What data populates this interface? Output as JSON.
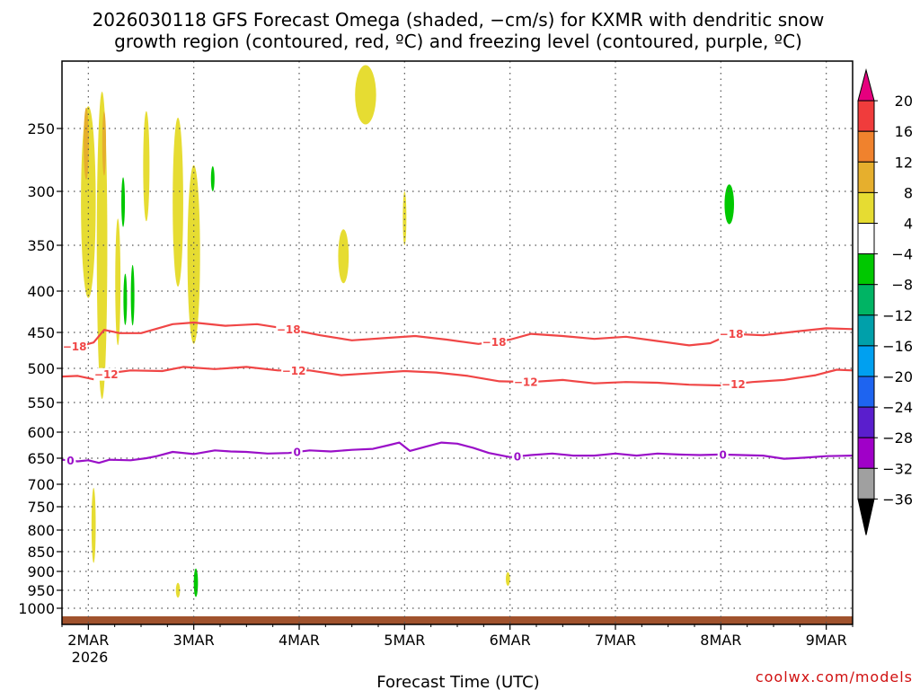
{
  "chart_data": {
    "type": "heatmap",
    "title_line1": "2026030118 GFS Forecast Omega (shaded, −cm/s) for KXMR with dendritic snow",
    "title_line2": "growth region (contoured, red, ºC) and freezing level (contoured, purple, ºC)",
    "xlabel": "Forecast Time (UTC)",
    "credit": "coolwx.com/models",
    "x_time_range_days": [
      0.75,
      8.25
    ],
    "y_pressure_range_hpa": [
      200,
      1020
    ],
    "x_ticks": [
      {
        "label": "2MAR",
        "day": 1
      },
      {
        "label": "3MAR",
        "day": 2
      },
      {
        "label": "4MAR",
        "day": 3
      },
      {
        "label": "5MAR",
        "day": 4
      },
      {
        "label": "6MAR",
        "day": 5
      },
      {
        "label": "7MAR",
        "day": 6
      },
      {
        "label": "8MAR",
        "day": 7
      },
      {
        "label": "9MAR",
        "day": 8
      }
    ],
    "x_year_label": "2026",
    "y_ticks": [
      {
        "label": "250",
        "p": 250
      },
      {
        "label": "300",
        "p": 300
      },
      {
        "label": "350",
        "p": 350
      },
      {
        "label": "400",
        "p": 400
      },
      {
        "label": "450",
        "p": 450
      },
      {
        "label": "500",
        "p": 500
      },
      {
        "label": "550",
        "p": 550
      },
      {
        "label": "600",
        "p": 600
      },
      {
        "label": "650",
        "p": 650
      },
      {
        "label": "700",
        "p": 700
      },
      {
        "label": "750",
        "p": 750
      },
      {
        "label": "800",
        "p": 800
      },
      {
        "label": "850",
        "p": 850
      },
      {
        "label": "900",
        "p": 900
      },
      {
        "label": "950",
        "p": 950
      },
      {
        "label": "1000",
        "p": 1000
      }
    ],
    "colorbar": {
      "bins": [
        {
          "color": "#e6007e",
          "shape": "tri-up"
        },
        {
          "color": "#f03c3c"
        },
        {
          "color": "#f0822d"
        },
        {
          "color": "#e6af2d"
        },
        {
          "color": "#e6dc32"
        },
        {
          "color": "#ffffff"
        },
        {
          "color": "#00c800"
        },
        {
          "color": "#00b464"
        },
        {
          "color": "#00a0aa"
        },
        {
          "color": "#00a0f0"
        },
        {
          "color": "#1e64f0"
        },
        {
          "color": "#5a1ecd"
        },
        {
          "color": "#a000c8"
        },
        {
          "color": "#a0a0a0"
        },
        {
          "color": "#000000",
          "shape": "tri-down"
        }
      ],
      "labels": [
        "20",
        "16",
        "12",
        "8",
        "4",
        "−4",
        "−8",
        "−12",
        "−16",
        "−20",
        "−24",
        "−28",
        "−32",
        "−36"
      ]
    },
    "contours": [
      {
        "name": "dgz-minus18",
        "color": "#f04646",
        "points": [
          [
            0.75,
            467
          ],
          [
            0.9,
            470
          ],
          [
            1.05,
            464
          ],
          [
            1.15,
            447
          ],
          [
            1.3,
            451
          ],
          [
            1.5,
            451
          ],
          [
            1.8,
            440
          ],
          [
            2.0,
            438
          ],
          [
            2.3,
            442
          ],
          [
            2.6,
            440
          ],
          [
            2.9,
            446
          ],
          [
            3.2,
            454
          ],
          [
            3.5,
            461
          ],
          [
            3.8,
            458
          ],
          [
            4.1,
            455
          ],
          [
            4.4,
            460
          ],
          [
            4.7,
            466
          ],
          [
            5.0,
            460
          ],
          [
            5.2,
            452
          ],
          [
            5.5,
            455
          ],
          [
            5.8,
            459
          ],
          [
            6.1,
            456
          ],
          [
            6.4,
            462
          ],
          [
            6.7,
            468
          ],
          [
            6.9,
            465
          ],
          [
            7.1,
            452
          ],
          [
            7.4,
            454
          ],
          [
            7.7,
            449
          ],
          [
            8.0,
            445
          ],
          [
            8.25,
            446
          ]
        ],
        "labels": [
          {
            "text": "−18",
            "day": 0.87
          },
          {
            "text": "−18",
            "day": 2.9
          },
          {
            "text": "−18",
            "day": 4.85
          },
          {
            "text": "−18",
            "day": 7.1
          }
        ]
      },
      {
        "name": "dgz-minus12",
        "color": "#f04646",
        "points": [
          [
            0.75,
            512
          ],
          [
            0.9,
            511
          ],
          [
            1.05,
            516
          ],
          [
            1.2,
            507
          ],
          [
            1.4,
            503
          ],
          [
            1.7,
            504
          ],
          [
            1.9,
            498
          ],
          [
            2.2,
            501
          ],
          [
            2.5,
            498
          ],
          [
            2.8,
            503
          ],
          [
            3.1,
            503
          ],
          [
            3.4,
            510
          ],
          [
            3.7,
            507
          ],
          [
            4.0,
            504
          ],
          [
            4.3,
            506
          ],
          [
            4.6,
            511
          ],
          [
            4.9,
            519
          ],
          [
            5.2,
            520
          ],
          [
            5.5,
            517
          ],
          [
            5.8,
            522
          ],
          [
            6.1,
            520
          ],
          [
            6.4,
            521
          ],
          [
            6.7,
            524
          ],
          [
            7.0,
            525
          ],
          [
            7.3,
            520
          ],
          [
            7.6,
            517
          ],
          [
            7.9,
            510
          ],
          [
            8.1,
            502
          ],
          [
            8.25,
            503
          ]
        ],
        "labels": [
          {
            "text": "−12",
            "day": 1.17
          },
          {
            "text": "−12",
            "day": 2.95
          },
          {
            "text": "−12",
            "day": 5.15
          },
          {
            "text": "−12",
            "day": 7.12
          }
        ]
      },
      {
        "name": "freezing-level-0",
        "color": "#9a10c8",
        "points": [
          [
            0.75,
            653
          ],
          [
            0.9,
            656
          ],
          [
            1.0,
            654
          ],
          [
            1.1,
            659
          ],
          [
            1.2,
            653
          ],
          [
            1.4,
            654
          ],
          [
            1.55,
            650
          ],
          [
            1.65,
            646
          ],
          [
            1.8,
            638
          ],
          [
            2.0,
            642
          ],
          [
            2.2,
            635
          ],
          [
            2.35,
            637
          ],
          [
            2.5,
            638
          ],
          [
            2.7,
            641
          ],
          [
            2.9,
            640
          ],
          [
            3.1,
            635
          ],
          [
            3.3,
            637
          ],
          [
            3.5,
            634
          ],
          [
            3.7,
            632
          ],
          [
            3.85,
            625
          ],
          [
            3.95,
            620
          ],
          [
            4.05,
            636
          ],
          [
            4.2,
            628
          ],
          [
            4.35,
            620
          ],
          [
            4.5,
            622
          ],
          [
            4.65,
            630
          ],
          [
            4.8,
            640
          ],
          [
            5.0,
            648
          ],
          [
            5.2,
            644
          ],
          [
            5.4,
            641
          ],
          [
            5.6,
            645
          ],
          [
            5.8,
            645
          ],
          [
            6.0,
            641
          ],
          [
            6.2,
            645
          ],
          [
            6.4,
            641
          ],
          [
            6.6,
            643
          ],
          [
            6.8,
            644
          ],
          [
            7.0,
            643
          ],
          [
            7.2,
            644
          ],
          [
            7.4,
            645
          ],
          [
            7.6,
            651
          ],
          [
            7.8,
            649
          ],
          [
            8.0,
            646
          ],
          [
            8.25,
            645
          ]
        ],
        "labels": [
          {
            "text": "0",
            "day": 0.83
          },
          {
            "text": "0",
            "day": 2.98
          },
          {
            "text": "0",
            "day": 5.07
          },
          {
            "text": "0",
            "day": 7.02
          }
        ]
      }
    ],
    "omega_regions": [
      {
        "name": "yellow-blob-a",
        "color": "#e6dc32",
        "cx": 1.0,
        "cp": 310,
        "rx": 0.07,
        "rp": 85
      },
      {
        "name": "yellow-blob-b",
        "color": "#e6dc32",
        "cx": 1.13,
        "cp": 350,
        "rx": 0.05,
        "rp": 150
      },
      {
        "name": "orange-core-a",
        "color": "#e6af2d",
        "cx": 0.98,
        "cp": 262,
        "rx": 0.025,
        "rp": 28
      },
      {
        "name": "orange-core-b",
        "color": "#e6af2d",
        "cx": 1.15,
        "cp": 262,
        "rx": 0.018,
        "rp": 25
      },
      {
        "name": "yellow-streak-c",
        "color": "#e6dc32",
        "cx": 1.28,
        "cp": 390,
        "rx": 0.025,
        "rp": 70
      },
      {
        "name": "yellow-streak-d",
        "color": "#e6dc32",
        "cx": 1.55,
        "cp": 280,
        "rx": 0.03,
        "rp": 45
      },
      {
        "name": "yellow-streak-e",
        "color": "#e6dc32",
        "cx": 1.85,
        "cp": 310,
        "rx": 0.05,
        "rp": 75
      },
      {
        "name": "yellow-streak-f",
        "color": "#e6dc32",
        "cx": 2.0,
        "cp": 360,
        "rx": 0.06,
        "rp": 90
      },
      {
        "name": "yellow-blob-g",
        "color": "#e6dc32",
        "cx": 3.63,
        "cp": 225,
        "rx": 0.1,
        "rp": 22
      },
      {
        "name": "yellow-blob-h",
        "color": "#e6dc32",
        "cx": 3.42,
        "cp": 362,
        "rx": 0.05,
        "rp": 28
      },
      {
        "name": "yellow-streak-i",
        "color": "#e6dc32",
        "cx": 4.0,
        "cp": 325,
        "rx": 0.012,
        "rp": 25
      },
      {
        "name": "yellow-streak-j",
        "color": "#e6dc32",
        "cx": 1.05,
        "cp": 790,
        "rx": 0.02,
        "rp": 85
      },
      {
        "name": "yellow-dot-k",
        "color": "#e6dc32",
        "cx": 1.85,
        "cp": 950,
        "rx": 0.02,
        "rp": 20
      },
      {
        "name": "yellow-dot-l",
        "color": "#e6dc32",
        "cx": 4.98,
        "cp": 920,
        "rx": 0.02,
        "rp": 18
      },
      {
        "name": "green-streak-a",
        "color": "#00c800",
        "cx": 1.33,
        "cp": 310,
        "rx": 0.01,
        "rp": 22
      },
      {
        "name": "green-streak-b",
        "color": "#00c800",
        "cx": 1.35,
        "cp": 410,
        "rx": 0.01,
        "rp": 30
      },
      {
        "name": "green-streak-c",
        "color": "#00c800",
        "cx": 1.42,
        "cp": 405,
        "rx": 0.01,
        "rp": 35
      },
      {
        "name": "green-dot-d",
        "color": "#00c800",
        "cx": 2.18,
        "cp": 290,
        "rx": 0.005,
        "rp": 10
      },
      {
        "name": "green-blob-e",
        "color": "#00c800",
        "cx": 7.08,
        "cp": 312,
        "rx": 0.045,
        "rp": 18
      },
      {
        "name": "green-blob-f",
        "color": "#00c800",
        "cx": 2.02,
        "cp": 930,
        "rx": 0.02,
        "rp": 38
      }
    ],
    "surface_band": {
      "color": "#a0522d",
      "p_top": 1010,
      "p_bottom": 1020
    }
  }
}
